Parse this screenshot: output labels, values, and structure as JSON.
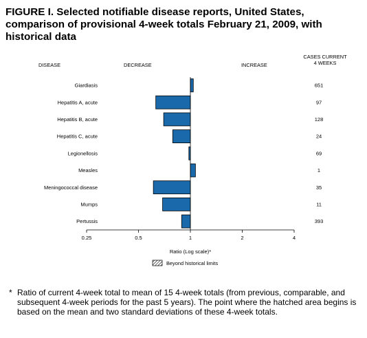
{
  "title": "FIGURE I. Selected notifiable disease reports, United States, comparison of provisional 4-week totals February 21, 2009, with historical data",
  "headers": {
    "disease": "DISEASE",
    "decrease": "DECREASE",
    "increase": "INCREASE",
    "cases_line1": "CASES CURRENT",
    "cases_line2": "4 WEEKS"
  },
  "colors": {
    "bar": "#1a6aab",
    "bar_stroke": "#000000"
  },
  "chart_data": {
    "type": "bar",
    "orientation": "horizontal",
    "categories": [
      "Giardiasis",
      "Hepatitis A, acute",
      "Hepatitis B, acute",
      "Hepatitis C, acute",
      "Legionellosis",
      "Measles",
      "Meningococcal disease",
      "Mumps",
      "Pertussis"
    ],
    "values": [
      1.04,
      0.63,
      0.7,
      0.79,
      0.98,
      1.07,
      0.61,
      0.69,
      0.89
    ],
    "cases": [
      "651",
      "97",
      "128",
      "24",
      "69",
      "1",
      "35",
      "11",
      "393"
    ],
    "xscale": "log",
    "xlim": [
      0.25,
      4
    ],
    "xticks": [
      0.25,
      0.5,
      1,
      2,
      4
    ],
    "xtick_labels": [
      "0.25",
      "0.5",
      "1",
      "2",
      "4"
    ],
    "reference_value": 1,
    "xlabel": "Ratio (Log scale)*",
    "legend": {
      "label": "Beyond historical limits",
      "pattern": "hatched",
      "position": "bottom-center"
    }
  },
  "footnote": {
    "mark": "*",
    "text": "Ratio of current 4-week total to mean of 15 4-week totals (from previous, comparable, and subsequent 4-week periods for the past 5 years). The point where the hatched area begins is based on the mean and two standard deviations of these 4-week totals."
  }
}
